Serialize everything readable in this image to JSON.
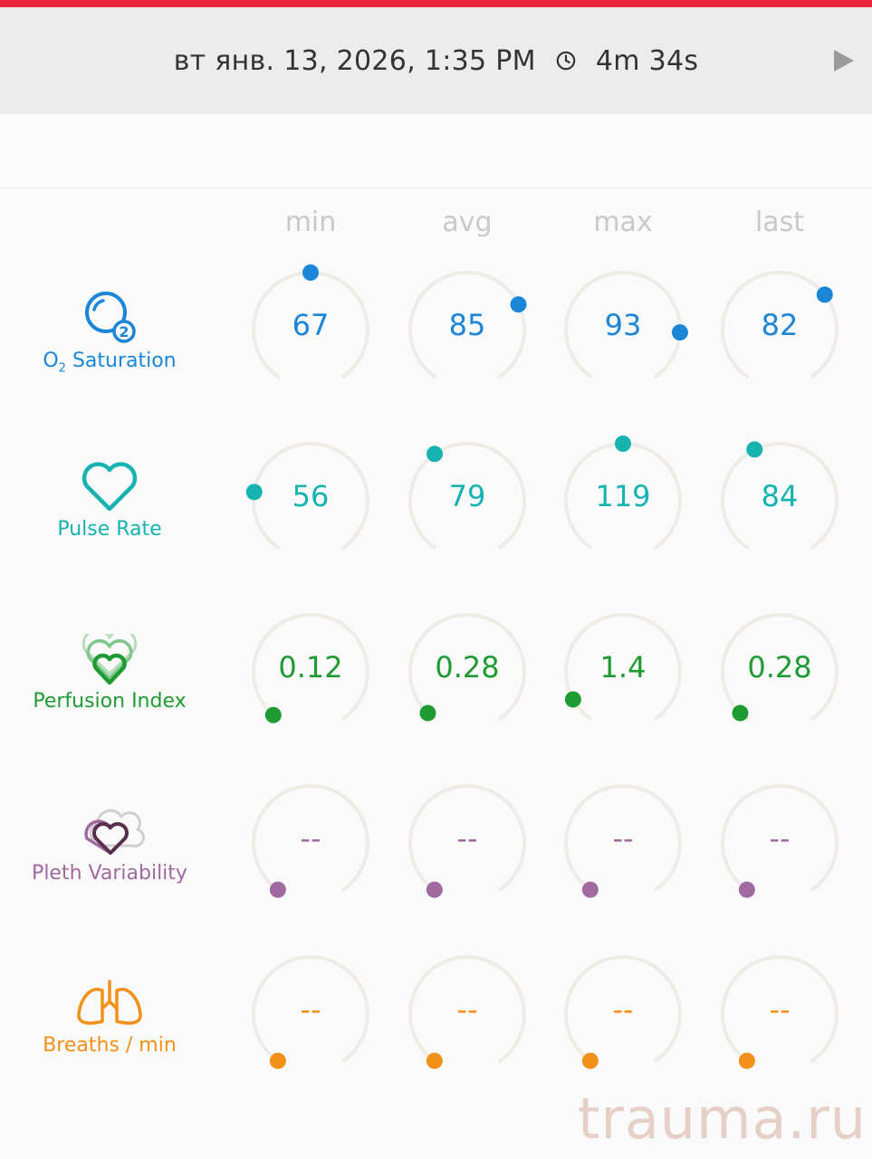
{
  "header": {
    "datetime": "вт янв. 13, 2026, 1:35 PM",
    "duration": "4m 34s",
    "accent": "#e8283a"
  },
  "columns": [
    "min",
    "avg",
    "max",
    "last"
  ],
  "rows": [
    {
      "label_main": "O",
      "label_sub": "2",
      "label_rest": " Saturation",
      "icon": "o2-icon",
      "color": "#1b86d8",
      "values": [
        "67",
        "85",
        "93",
        "82"
      ],
      "levels": [
        0.5,
        0.72,
        0.82,
        0.68
      ]
    },
    {
      "label": "Pulse Rate",
      "icon": "heart-icon",
      "color": "#17b3b0",
      "values": [
        "56",
        "79",
        "119",
        "84"
      ],
      "levels": [
        0.22,
        0.38,
        0.5,
        0.41
      ]
    },
    {
      "label": "Perfusion Index",
      "icon": "stacked-hearts-icon",
      "color": "#1f9b34",
      "values": [
        "0.12",
        "0.28",
        "1.4",
        "0.28"
      ],
      "levels": [
        0.02,
        0.03,
        0.09,
        0.03
      ]
    },
    {
      "label": "Pleth Variability",
      "icon": "pleth-variability-icon",
      "color": "#a06aa0",
      "values": [
        "--",
        "--",
        "--",
        "--"
      ],
      "levels": [
        0,
        0,
        0,
        0
      ]
    },
    {
      "label": "Breaths / min",
      "icon": "lungs-icon",
      "color": "#f39019",
      "values": [
        "--",
        "--",
        "--",
        "--"
      ],
      "levels": [
        0,
        0,
        0,
        0
      ]
    }
  ],
  "watermark": "trauma.ru"
}
